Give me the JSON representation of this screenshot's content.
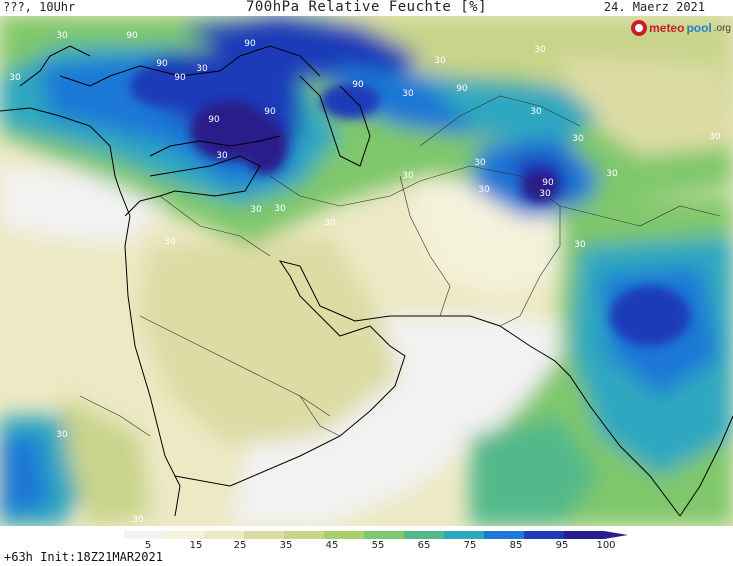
{
  "header": {
    "left_text": "???, 10Uhr",
    "title": "700hPa Relative Feuchte [%]",
    "date": "24. Maerz 2021"
  },
  "map": {
    "label_color": "#ffffff",
    "contour_labels": [
      {
        "text": "30"
      },
      {
        "text": "90"
      },
      {
        "text": "90"
      },
      {
        "text": "90"
      },
      {
        "text": "30"
      },
      {
        "text": "90"
      },
      {
        "text": "30"
      },
      {
        "text": "90"
      },
      {
        "text": "90"
      },
      {
        "text": "30"
      },
      {
        "text": "30"
      },
      {
        "text": "90"
      },
      {
        "text": "30"
      },
      {
        "text": "30"
      },
      {
        "text": "90"
      },
      {
        "text": "30"
      },
      {
        "text": "30"
      },
      {
        "text": "30"
      },
      {
        "text": "30"
      },
      {
        "text": "30"
      },
      {
        "text": "90"
      },
      {
        "text": "30"
      },
      {
        "text": "30"
      },
      {
        "text": "30"
      },
      {
        "text": "30"
      },
      {
        "text": "30"
      },
      {
        "text": "30"
      },
      {
        "text": "30"
      },
      {
        "text": "30"
      },
      {
        "text": "30"
      },
      {
        "text": "30"
      }
    ]
  },
  "legend": {
    "ticks": [
      "5",
      "15",
      "25",
      "35",
      "45",
      "55",
      "65",
      "75",
      "85",
      "95",
      "100"
    ],
    "colors": [
      "#f2f2f2",
      "#f5f2dc",
      "#ece9c4",
      "#dcdca4",
      "#c8d48a",
      "#a9cf6b",
      "#7fc76b",
      "#52b98a",
      "#2ea7c0",
      "#1e78d6",
      "#1f3bb8",
      "#2a1f8a"
    ],
    "init_text": "+63h  Init:18Z21MAR2021"
  },
  "brand": {
    "part_a": "meteo",
    "part_b": "pool",
    "part_c": ".org"
  }
}
